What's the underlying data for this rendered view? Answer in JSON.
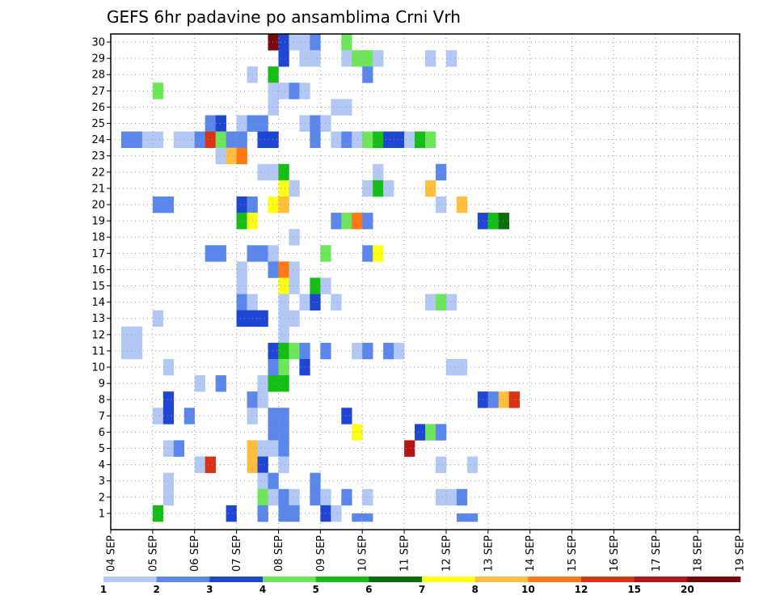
{
  "chart_data": {
    "type": "heatmap",
    "title": "GEFS 6hr padavine po ansamblima Crni Vrh",
    "xlabel": "",
    "ylabel": "",
    "x_tick_labels": [
      "04 SEP",
      "05 SEP",
      "06 SEP",
      "07 SEP",
      "08 SEP",
      "09 SEP",
      "10 SEP",
      "11 SEP",
      "12 SEP",
      "13 SEP",
      "14 SEP",
      "15 SEP",
      "16 SEP",
      "17 SEP",
      "18 SEP",
      "19 SEP"
    ],
    "y_tick_labels": [
      "1",
      "2",
      "3",
      "4",
      "5",
      "6",
      "7",
      "8",
      "9",
      "10",
      "11",
      "12",
      "13",
      "14",
      "15",
      "16",
      "17",
      "18",
      "19",
      "20",
      "21",
      "22",
      "23",
      "24",
      "25",
      "26",
      "27",
      "28",
      "29",
      "30"
    ],
    "x_unit": "6-hour step",
    "steps_per_day": 4,
    "grid": true,
    "legend": {
      "position": "bottom",
      "labels": [
        "1",
        "2",
        "3",
        "4",
        "5",
        "6",
        "7",
        "8",
        "10",
        "12",
        "15",
        "20"
      ],
      "colors": [
        "#b3c8f5",
        "#5b87ec",
        "#1e46d2",
        "#6ee65a",
        "#14be14",
        "#0a6e0a",
        "#ffff14",
        "#ffbe3c",
        "#ff7814",
        "#dc3214",
        "#b41414",
        "#780a0a"
      ]
    },
    "cells": [
      [
        30,
        15,
        11
      ],
      [
        30,
        16,
        2
      ],
      [
        30,
        17,
        0
      ],
      [
        30,
        18,
        0
      ],
      [
        30,
        19,
        1
      ],
      [
        30,
        22,
        3
      ],
      [
        29,
        16,
        2
      ],
      [
        29,
        18,
        0
      ],
      [
        29,
        19,
        0
      ],
      [
        29,
        22,
        0
      ],
      [
        29,
        23,
        3
      ],
      [
        29,
        24,
        3
      ],
      [
        29,
        25,
        0
      ],
      [
        29,
        30,
        0
      ],
      [
        29,
        32,
        0
      ],
      [
        28,
        13,
        0
      ],
      [
        28,
        15,
        4
      ],
      [
        28,
        24,
        1
      ],
      [
        27,
        4,
        3
      ],
      [
        27,
        15,
        0
      ],
      [
        27,
        16,
        0
      ],
      [
        27,
        17,
        1
      ],
      [
        27,
        18,
        0
      ],
      [
        26,
        15,
        0
      ],
      [
        26,
        21,
        0
      ],
      [
        26,
        22,
        0
      ],
      [
        25,
        9,
        1
      ],
      [
        25,
        10,
        2
      ],
      [
        25,
        12,
        0
      ],
      [
        25,
        13,
        1
      ],
      [
        25,
        14,
        1
      ],
      [
        25,
        18,
        0
      ],
      [
        25,
        19,
        1
      ],
      [
        25,
        20,
        0
      ],
      [
        24,
        1,
        1
      ],
      [
        24,
        2,
        1
      ],
      [
        24,
        3,
        0
      ],
      [
        24,
        4,
        0
      ],
      [
        24,
        6,
        0
      ],
      [
        24,
        7,
        0
      ],
      [
        24,
        8,
        1
      ],
      [
        24,
        9,
        9
      ],
      [
        24,
        10,
        3
      ],
      [
        24,
        11,
        1
      ],
      [
        24,
        12,
        1
      ],
      [
        24,
        14,
        2
      ],
      [
        24,
        15,
        2
      ],
      [
        24,
        19,
        1
      ],
      [
        24,
        21,
        0
      ],
      [
        24,
        22,
        1
      ],
      [
        24,
        23,
        0
      ],
      [
        24,
        24,
        3
      ],
      [
        24,
        25,
        4
      ],
      [
        24,
        26,
        2
      ],
      [
        24,
        27,
        2
      ],
      [
        24,
        28,
        0
      ],
      [
        24,
        29,
        4
      ],
      [
        24,
        30,
        3
      ],
      [
        23,
        10,
        0
      ],
      [
        23,
        11,
        7
      ],
      [
        23,
        12,
        8
      ],
      [
        22,
        14,
        0
      ],
      [
        22,
        15,
        0
      ],
      [
        22,
        16,
        4
      ],
      [
        22,
        25,
        0
      ],
      [
        22,
        31,
        1
      ],
      [
        21,
        16,
        6
      ],
      [
        21,
        17,
        0
      ],
      [
        21,
        24,
        0
      ],
      [
        21,
        25,
        4
      ],
      [
        21,
        26,
        0
      ],
      [
        21,
        30,
        7
      ],
      [
        20,
        4,
        1
      ],
      [
        20,
        5,
        1
      ],
      [
        20,
        12,
        2
      ],
      [
        20,
        13,
        1
      ],
      [
        20,
        15,
        6
      ],
      [
        20,
        16,
        7
      ],
      [
        20,
        31,
        0
      ],
      [
        20,
        33,
        7
      ],
      [
        19,
        12,
        4
      ],
      [
        19,
        13,
        6
      ],
      [
        19,
        21,
        1
      ],
      [
        19,
        22,
        3
      ],
      [
        19,
        23,
        8
      ],
      [
        19,
        24,
        1
      ],
      [
        19,
        35,
        2
      ],
      [
        19,
        36,
        4
      ],
      [
        19,
        37,
        5
      ],
      [
        18,
        17,
        0
      ],
      [
        17,
        9,
        1
      ],
      [
        17,
        10,
        1
      ],
      [
        17,
        13,
        1
      ],
      [
        17,
        14,
        1
      ],
      [
        17,
        15,
        0
      ],
      [
        17,
        20,
        3
      ],
      [
        17,
        24,
        1
      ],
      [
        17,
        25,
        6
      ],
      [
        16,
        12,
        0
      ],
      [
        16,
        15,
        1
      ],
      [
        16,
        16,
        8
      ],
      [
        16,
        17,
        0
      ],
      [
        15,
        12,
        0
      ],
      [
        15,
        16,
        6
      ],
      [
        15,
        17,
        0
      ],
      [
        15,
        19,
        4
      ],
      [
        15,
        20,
        0
      ],
      [
        14,
        12,
        1
      ],
      [
        14,
        13,
        0
      ],
      [
        14,
        16,
        0
      ],
      [
        14,
        18,
        0
      ],
      [
        14,
        19,
        2
      ],
      [
        14,
        21,
        0
      ],
      [
        14,
        30,
        0
      ],
      [
        14,
        31,
        3
      ],
      [
        14,
        32,
        0
      ],
      [
        13,
        4,
        0
      ],
      [
        13,
        12,
        2
      ],
      [
        13,
        13,
        2
      ],
      [
        13,
        14,
        2
      ],
      [
        13,
        16,
        0
      ],
      [
        13,
        17,
        0
      ],
      [
        12,
        1,
        0
      ],
      [
        12,
        2,
        0
      ],
      [
        12,
        16,
        0
      ],
      [
        11,
        1,
        0
      ],
      [
        11,
        2,
        0
      ],
      [
        11,
        15,
        2
      ],
      [
        11,
        16,
        4
      ],
      [
        11,
        17,
        3
      ],
      [
        11,
        18,
        1
      ],
      [
        11,
        20,
        1
      ],
      [
        11,
        23,
        0
      ],
      [
        11,
        24,
        1
      ],
      [
        11,
        26,
        1
      ],
      [
        11,
        27,
        0
      ],
      [
        10,
        5,
        0
      ],
      [
        10,
        15,
        1
      ],
      [
        10,
        16,
        3
      ],
      [
        10,
        18,
        2
      ],
      [
        10,
        32,
        0
      ],
      [
        10,
        33,
        0
      ],
      [
        9,
        8,
        0
      ],
      [
        9,
        10,
        1
      ],
      [
        9,
        14,
        0
      ],
      [
        9,
        15,
        4
      ],
      [
        9,
        16,
        4
      ],
      [
        8,
        5,
        2
      ],
      [
        8,
        13,
        1
      ],
      [
        8,
        14,
        0
      ],
      [
        8,
        35,
        2
      ],
      [
        8,
        36,
        1
      ],
      [
        8,
        37,
        7
      ],
      [
        8,
        38,
        9
      ],
      [
        7,
        4,
        0
      ],
      [
        7,
        5,
        2
      ],
      [
        7,
        7,
        1
      ],
      [
        7,
        13,
        0
      ],
      [
        7,
        15,
        1
      ],
      [
        7,
        16,
        1
      ],
      [
        7,
        22,
        2
      ],
      [
        6,
        15,
        1
      ],
      [
        6,
        16,
        1
      ],
      [
        6,
        23,
        6
      ],
      [
        6,
        29,
        2
      ],
      [
        6,
        30,
        3
      ],
      [
        6,
        31,
        1
      ],
      [
        5,
        5,
        0
      ],
      [
        5,
        6,
        1
      ],
      [
        5,
        13,
        7
      ],
      [
        5,
        14,
        0
      ],
      [
        5,
        15,
        0
      ],
      [
        5,
        16,
        1
      ],
      [
        5,
        28,
        10
      ],
      [
        4,
        8,
        0
      ],
      [
        4,
        9,
        9
      ],
      [
        4,
        13,
        7
      ],
      [
        4,
        14,
        2
      ],
      [
        4,
        16,
        0
      ],
      [
        4,
        31,
        0
      ],
      [
        4,
        34,
        0
      ],
      [
        3,
        5,
        0
      ],
      [
        3,
        14,
        0
      ],
      [
        3,
        15,
        1
      ],
      [
        3,
        19,
        1
      ],
      [
        2,
        5,
        0
      ],
      [
        2,
        14,
        3
      ],
      [
        2,
        15,
        0
      ],
      [
        2,
        16,
        1
      ],
      [
        2,
        17,
        0
      ],
      [
        2,
        19,
        1
      ],
      [
        2,
        20,
        0
      ],
      [
        2,
        22,
        1
      ],
      [
        2,
        24,
        0
      ],
      [
        2,
        31,
        0
      ],
      [
        2,
        32,
        0
      ],
      [
        2,
        33,
        1
      ],
      [
        1,
        4,
        4
      ],
      [
        1,
        11,
        2
      ],
      [
        1,
        14,
        1
      ],
      [
        1,
        16,
        1
      ],
      [
        1,
        17,
        1
      ],
      [
        1,
        20,
        2
      ],
      [
        1,
        21,
        0
      ],
      [
        0.5,
        14,
        1
      ],
      [
        0.5,
        23,
        1
      ],
      [
        0.5,
        24,
        1
      ],
      [
        0.5,
        33,
        1
      ],
      [
        0.5,
        34,
        1
      ]
    ]
  }
}
